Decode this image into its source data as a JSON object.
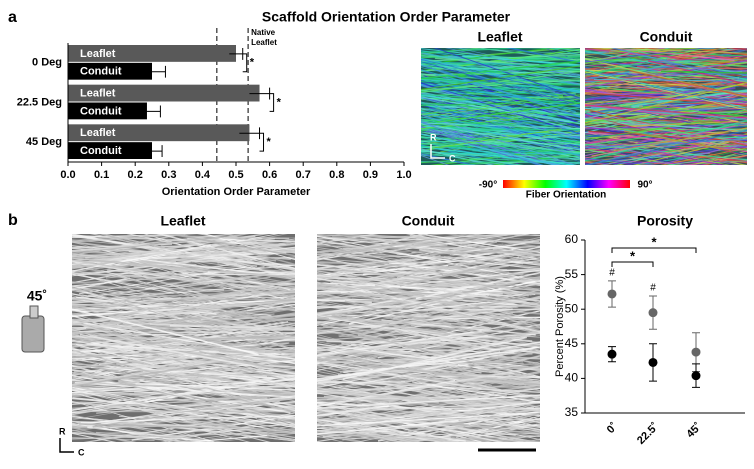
{
  "figure": {
    "panel_labels": [
      "a",
      "b"
    ],
    "orientation_images": {
      "titles": [
        "Leaflet",
        "Conduit"
      ],
      "axis_r": "R",
      "axis_c": "C",
      "colorbar_min": "-90°",
      "colorbar_max": "90°",
      "colorbar_label": "Fiber Orientation"
    },
    "sem_images": {
      "titles": [
        "Leaflet",
        "Conduit"
      ],
      "angle": "45˚",
      "axis_r": "R",
      "axis_c": "C"
    }
  },
  "chart_data": [
    {
      "type": "hbar",
      "title": "Scaffold Orientation Order Parameter",
      "categories": [
        "0 Deg",
        "22.5 Deg",
        "45 Deg"
      ],
      "series": [
        {
          "name": "Leaflet",
          "color": "#595959",
          "values": [
            0.5,
            0.57,
            0.54
          ],
          "errors": [
            0.02,
            0.03,
            0.03
          ]
        },
        {
          "name": "Conduit",
          "color": "#000000",
          "values": [
            0.25,
            0.235,
            0.25
          ],
          "errors": [
            0.04,
            0.04,
            0.03
          ]
        }
      ],
      "significance": [
        "*",
        "*",
        "*"
      ],
      "xlim": [
        0,
        1
      ],
      "xticks": [
        {
          "value": 0,
          "label": "0.0"
        },
        0.1,
        0.2,
        0.3,
        0.4,
        0.5,
        0.6,
        0.7,
        0.8,
        0.9,
        {
          "value": 1,
          "label": "1.0"
        }
      ],
      "x_label": "Orientation Order Parameter",
      "reference_lines": [
        0.443,
        0.536
      ],
      "reference_label": [
        "Native",
        "Leaflet"
      ]
    },
    {
      "type": "dot",
      "title": "Porosity",
      "categories": [
        "0˚",
        "22.5˚",
        "45˚"
      ],
      "series": [
        {
          "color": "#666666",
          "values": [
            52.2,
            49.5,
            43.8
          ],
          "errors": [
            1.9,
            2.4,
            2.8
          ],
          "point_labels": [
            "#",
            "#",
            null
          ]
        },
        {
          "color": "#000000",
          "values": [
            43.5,
            42.3,
            40.4
          ],
          "errors": [
            1.1,
            2.7,
            1.7
          ]
        }
      ],
      "brackets": [
        "*",
        "*"
      ],
      "ylim": [
        35,
        60
      ],
      "yticks": [
        35,
        40,
        45,
        50,
        55,
        60
      ],
      "y_label": "Percent Porosity (%)"
    }
  ]
}
